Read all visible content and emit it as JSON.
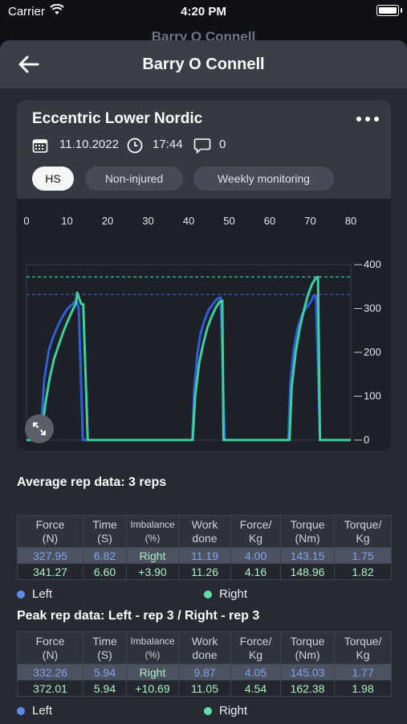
{
  "status_bar": {
    "carrier": "Carrier",
    "time": "4:20 PM"
  },
  "background_title": "Barry O Connell",
  "header": {
    "title": "Barry O Connell"
  },
  "card": {
    "title": "Eccentric Lower Nordic",
    "date": "11.10.2022",
    "time": "17:44",
    "comments": "0",
    "tags": [
      "HS",
      "Non-injured",
      "Weekly monitoring"
    ]
  },
  "chart_data": {
    "type": "line",
    "x_ticks": [
      "0",
      "10",
      "20",
      "30",
      "40",
      "50",
      "60",
      "70",
      "80"
    ],
    "y_ticks": [
      "400",
      "300",
      "200",
      "100",
      "0"
    ],
    "xlim": [
      0,
      80
    ],
    "ylim": [
      0,
      400
    ],
    "reference_lines": [
      {
        "color": "#35c7a4",
        "value": 372
      },
      {
        "color": "#3a62d6",
        "value": 332
      }
    ],
    "series": [
      {
        "color": "#2f5fd8",
        "points": [
          [
            0,
            0
          ],
          [
            3.4,
            0
          ],
          [
            4.4,
            140
          ],
          [
            5.5,
            205
          ],
          [
            6.6,
            235
          ],
          [
            7.7,
            260
          ],
          [
            8.8,
            280
          ],
          [
            10,
            298
          ],
          [
            11.5,
            312
          ],
          [
            12.3,
            318
          ],
          [
            12.9,
            300
          ],
          [
            13.9,
            0
          ],
          [
            20,
            0
          ],
          [
            40.9,
            0
          ],
          [
            41.4,
            120
          ],
          [
            42.2,
            200
          ],
          [
            43,
            245
          ],
          [
            44,
            275
          ],
          [
            45,
            298
          ],
          [
            46,
            310
          ],
          [
            47,
            322
          ],
          [
            47.9,
            325
          ],
          [
            48.9,
            0
          ],
          [
            55,
            0
          ],
          [
            64.6,
            0
          ],
          [
            65.1,
            130
          ],
          [
            65.9,
            205
          ],
          [
            66.9,
            255
          ],
          [
            67.9,
            285
          ],
          [
            68.9,
            300
          ],
          [
            69.9,
            312
          ],
          [
            70.9,
            330
          ],
          [
            71.4,
            330
          ],
          [
            72.4,
            0
          ],
          [
            80,
            0
          ]
        ]
      },
      {
        "color": "#3ecf9e",
        "points": [
          [
            0,
            0
          ],
          [
            3.6,
            0
          ],
          [
            4.6,
            80
          ],
          [
            5.7,
            140
          ],
          [
            6.8,
            185
          ],
          [
            7.9,
            215
          ],
          [
            9,
            245
          ],
          [
            10.1,
            270
          ],
          [
            11.3,
            295
          ],
          [
            12.2,
            312
          ],
          [
            12.5,
            336
          ],
          [
            13.5,
            310
          ],
          [
            14,
            310
          ],
          [
            15.1,
            0
          ],
          [
            20,
            0
          ],
          [
            41,
            0
          ],
          [
            41.6,
            100
          ],
          [
            42.6,
            175
          ],
          [
            43.6,
            220
          ],
          [
            44.6,
            255
          ],
          [
            45.6,
            280
          ],
          [
            46.6,
            300
          ],
          [
            47.6,
            315
          ],
          [
            48.3,
            318
          ],
          [
            48.6,
            0
          ],
          [
            55,
            0
          ],
          [
            64.9,
            0
          ],
          [
            65.4,
            120
          ],
          [
            66.4,
            200
          ],
          [
            67.4,
            255
          ],
          [
            68.4,
            295
          ],
          [
            69.4,
            330
          ],
          [
            70.4,
            355
          ],
          [
            71.4,
            370
          ],
          [
            71.9,
            372
          ],
          [
            72.4,
            0
          ],
          [
            80,
            0
          ]
        ]
      }
    ]
  },
  "average": {
    "title": "Average rep data: 3 reps",
    "headers": [
      "Force\n(N)",
      "Time\n(S)",
      "Imbalance\n(%)",
      "Work\ndone",
      "Force/\nKg",
      "Torque\n(Nm)",
      "Torque/\nKg"
    ],
    "left": [
      "327.95",
      "6.82",
      "Right",
      "11.19",
      "4.00",
      "143.15",
      "1.75"
    ],
    "right": [
      "341.27",
      "6.60",
      "+3.90",
      "11.26",
      "4.16",
      "148.96",
      "1.82"
    ],
    "legend_left": "Left",
    "legend_right": "Right"
  },
  "peak": {
    "title": "Peak rep data: Left - rep 3 / Right - rep 3",
    "headers": [
      "Force\n(N)",
      "Time\n(S)",
      "Imbalance\n(%)",
      "Work\ndone",
      "Force/\nKg",
      "Torque\n(Nm)",
      "Torque/\nKg"
    ],
    "left": [
      "332.26",
      "5.94",
      "Right",
      "9.87",
      "4.05",
      "145.03",
      "1.77"
    ],
    "right": [
      "372.01",
      "5.94",
      "+10.69",
      "11.05",
      "4.54",
      "162.38",
      "1.98"
    ],
    "legend_left": "Left",
    "legend_right": "Right"
  },
  "colors": {
    "left": "#5b8def",
    "right": "#62e0a8"
  }
}
